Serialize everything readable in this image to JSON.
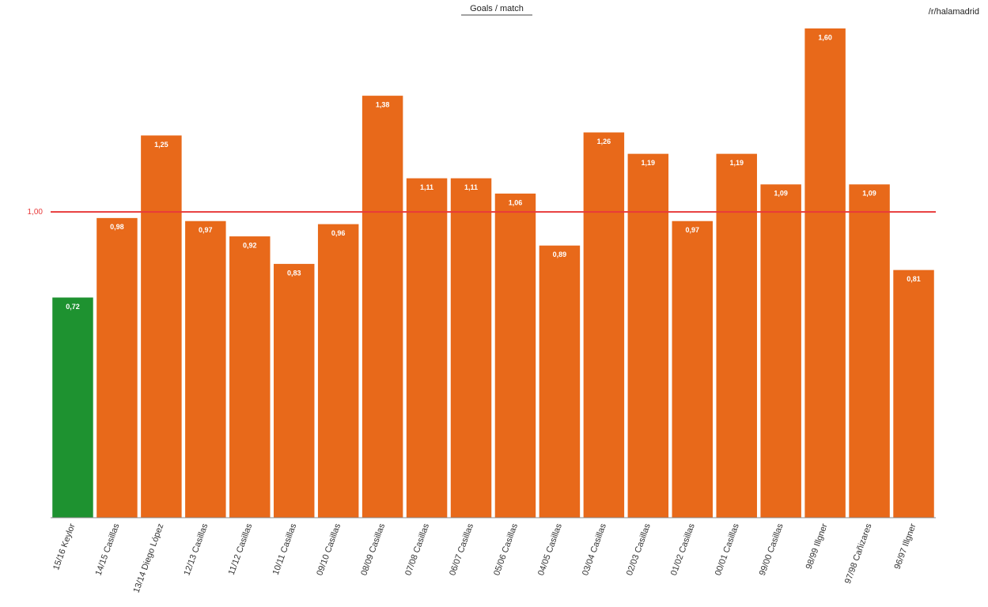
{
  "chart_data": {
    "type": "bar",
    "title": "Goals / match",
    "source": "/r/halamadrid",
    "categories": [
      "15/16 Keylor",
      "14/15 Casillas",
      "13/14 Diego López",
      "12/13 Casillas",
      "11/12 Casillas",
      "10/11 Casillas",
      "09/10 Casillas",
      "08/09 Casillas",
      "07/08 Casillas",
      "06/07 Casillas",
      "05/06 Casillas",
      "04/05 Casillas",
      "03/04 Casillas",
      "02/03 Casillas",
      "01/02 Casillas",
      "00/01 Casillas",
      "99/00 Casillas",
      "98/99 Illgner",
      "97/98 Cañizares",
      "96/97 Illgner"
    ],
    "values": [
      0.72,
      0.98,
      1.25,
      0.97,
      0.92,
      0.83,
      0.96,
      1.38,
      1.11,
      1.11,
      1.06,
      0.89,
      1.26,
      1.19,
      0.97,
      1.19,
      1.09,
      1.6,
      1.09,
      0.81
    ],
    "value_labels": [
      "0,72",
      "0,98",
      "1,25",
      "0,97",
      "0,92",
      "0,83",
      "0,96",
      "1,38",
      "1,11",
      "1,11",
      "1,06",
      "0,89",
      "1,26",
      "1,19",
      "0,97",
      "1,19",
      "1,09",
      "1,60",
      "1,09",
      "0,81"
    ],
    "colors": [
      "#1e9230",
      "#e8691a",
      "#e8691a",
      "#e8691a",
      "#e8691a",
      "#e8691a",
      "#e8691a",
      "#e8691a",
      "#e8691a",
      "#e8691a",
      "#e8691a",
      "#e8691a",
      "#e8691a",
      "#e8691a",
      "#e8691a",
      "#e8691a",
      "#e8691a",
      "#e8691a",
      "#e8691a",
      "#e8691a"
    ],
    "ylim": [
      0,
      1.6
    ],
    "reference_line": {
      "value": 1,
      "label": "1,00",
      "color": "#e83a3a"
    }
  }
}
